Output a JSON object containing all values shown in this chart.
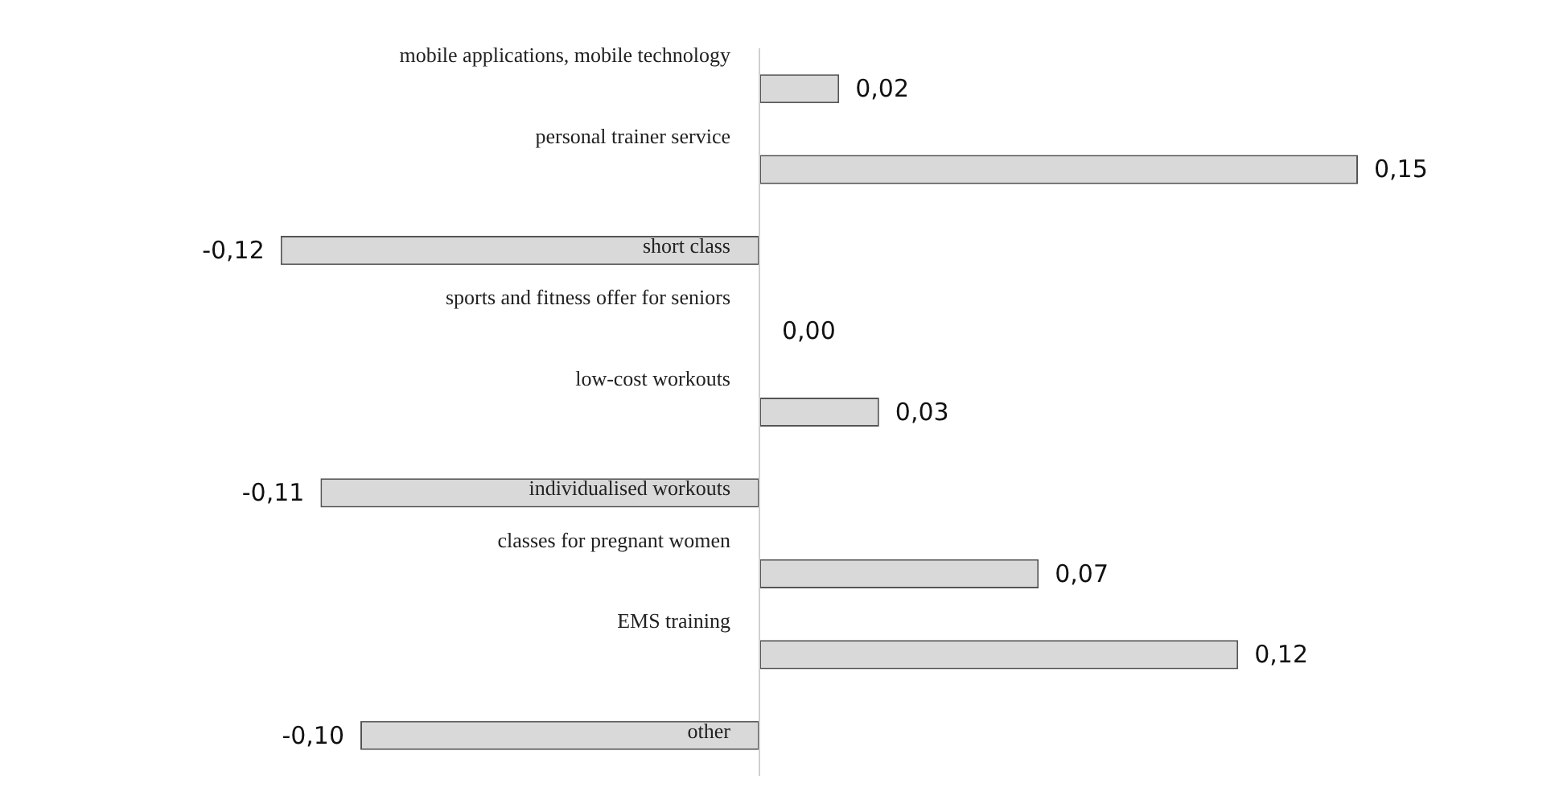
{
  "chart_data": {
    "type": "bar",
    "orientation": "horizontal",
    "categories": [
      "mobile applications, mobile technology",
      "personal trainer service",
      "short class",
      "sports and fitness offer for seniors",
      "low-cost workouts",
      "individualised workouts",
      "classes for pregnant women",
      "EMS training",
      "other"
    ],
    "values": [
      0.02,
      0.15,
      -0.12,
      0.0,
      0.03,
      -0.11,
      0.07,
      0.12,
      -0.1
    ],
    "value_labels": [
      "0,02",
      "0,15",
      "-0,12",
      "0,00",
      "0,03",
      "-0,11",
      "0,07",
      "0,12",
      "-0,10"
    ],
    "color": "#d9d9d9",
    "legend": false
  }
}
